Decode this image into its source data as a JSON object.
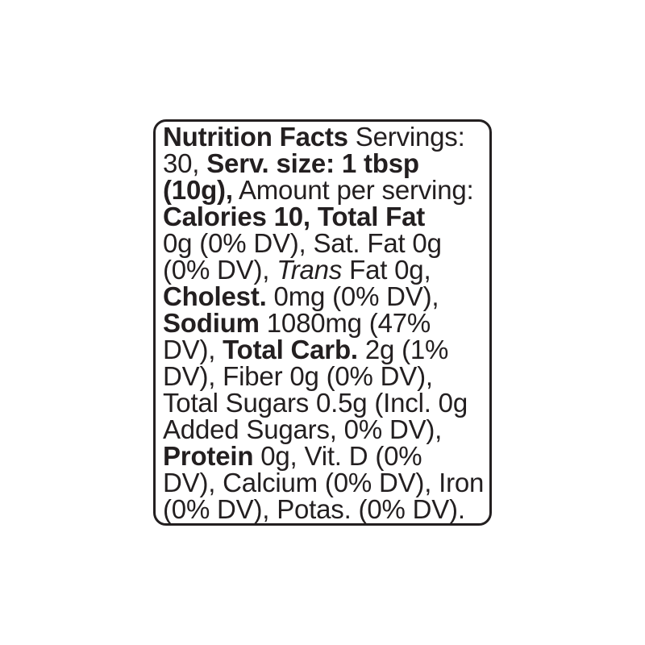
{
  "colors": {
    "background": "#ffffff",
    "text": "#231f20",
    "border": "#231f20"
  },
  "nutrition": {
    "servings": "30",
    "serving_size": "1 tbsp (10g)",
    "calories": "10",
    "total_fat": "0g (0% DV)",
    "saturated_fat": "0g (0% DV)",
    "trans_fat": "0g",
    "cholesterol": "0mg (0% DV)",
    "sodium": "1080mg (47% DV)",
    "total_carbohydrate": "2g (1% DV)",
    "dietary_fiber": "0g (0% DV)",
    "total_sugars": "0.5g",
    "added_sugars": "0g (0% DV)",
    "protein": "0g",
    "vitamin_d": "0% DV",
    "calcium": "0% DV",
    "iron": "0% DV",
    "potassium": "0% DV"
  },
  "label": {
    "lines": [
      [
        {
          "text": "Nutrition Facts",
          "style": "bold"
        },
        {
          "text": " Servings:",
          "style": "regular"
        }
      ],
      [
        {
          "text": "30, ",
          "style": "regular"
        },
        {
          "text": "Serv. size: 1 tbsp",
          "style": "bold"
        }
      ],
      [
        {
          "text": "(10g),",
          "style": "bold"
        },
        {
          "text": " Amount per serving:",
          "style": "regular"
        }
      ],
      [
        {
          "text": "Calories 10, Total Fat",
          "style": "bold"
        }
      ],
      [
        {
          "text": "0g (0% DV), Sat. Fat 0g",
          "style": "regular"
        }
      ],
      [
        {
          "text": "(0% DV), ",
          "style": "regular"
        },
        {
          "text": "Trans",
          "style": "italic"
        },
        {
          "text": " Fat 0g,",
          "style": "regular"
        }
      ],
      [
        {
          "text": "Cholest.",
          "style": "bold"
        },
        {
          "text": " 0mg (0% DV),",
          "style": "regular"
        }
      ],
      [
        {
          "text": "Sodium",
          "style": "bold"
        },
        {
          "text": " 1080mg (47%",
          "style": "regular"
        }
      ],
      [
        {
          "text": "DV), ",
          "style": "regular"
        },
        {
          "text": "Total Carb.",
          "style": "bold"
        },
        {
          "text": " 2g (1%",
          "style": "regular"
        }
      ],
      [
        {
          "text": "DV), Fiber 0g (0% DV),",
          "style": "regular"
        }
      ],
      [
        {
          "text": "Total Sugars 0.5g (Incl. 0g",
          "style": "regular"
        }
      ],
      [
        {
          "text": "Added Sugars, 0% DV),",
          "style": "regular"
        }
      ],
      [
        {
          "text": "Protein",
          "style": "bold"
        },
        {
          "text": " 0g, Vit. D (0%",
          "style": "regular"
        }
      ],
      [
        {
          "text": "DV), Calcium (0% DV), Iron",
          "style": "regular"
        }
      ],
      [
        {
          "text": "(0% DV), Potas. (0% DV).",
          "style": "regular"
        }
      ]
    ]
  }
}
